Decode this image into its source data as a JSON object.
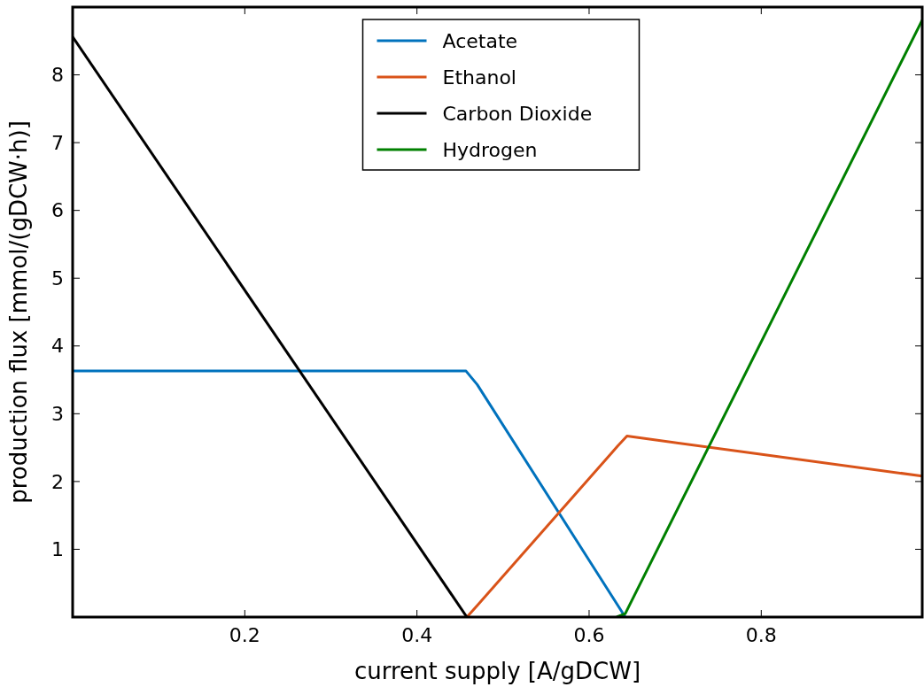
{
  "chart_data": {
    "type": "line",
    "xlabel": "current supply [A/gDCW]",
    "ylabel": "production flux [mmol/(gDCW·h)]",
    "xlim": [
      0,
      0.987
    ],
    "ylim": [
      0,
      9
    ],
    "xticks": [
      0.2,
      0.4,
      0.6,
      0.8
    ],
    "yticks": [
      1,
      2,
      3,
      4,
      5,
      6,
      7,
      8
    ],
    "legend": "top",
    "grid": false,
    "line_style": "solid",
    "marker": "none",
    "series": [
      {
        "name": "Acetate",
        "color": "#0072bd",
        "x": [
          0,
          0.457,
          0.47,
          0.632,
          0.642
        ],
        "values": [
          3.63,
          3.63,
          3.43,
          0.2,
          0
        ]
      },
      {
        "name": "Ethanol",
        "color": "#d95319",
        "x": [
          0.458,
          0.47,
          0.633,
          0.644,
          0.987
        ],
        "values": [
          0,
          0.17,
          2.52,
          2.67,
          2.08
        ]
      },
      {
        "name": "Carbon Dioxide",
        "color": "#000000",
        "x": [
          0,
          0.458
        ],
        "values": [
          8.56,
          0
        ]
      },
      {
        "name": "Hydrogen",
        "color": "#008000",
        "x": [
          0.632,
          0.642,
          0.987
        ],
        "values": [
          0,
          0.05,
          8.81
        ]
      }
    ]
  }
}
